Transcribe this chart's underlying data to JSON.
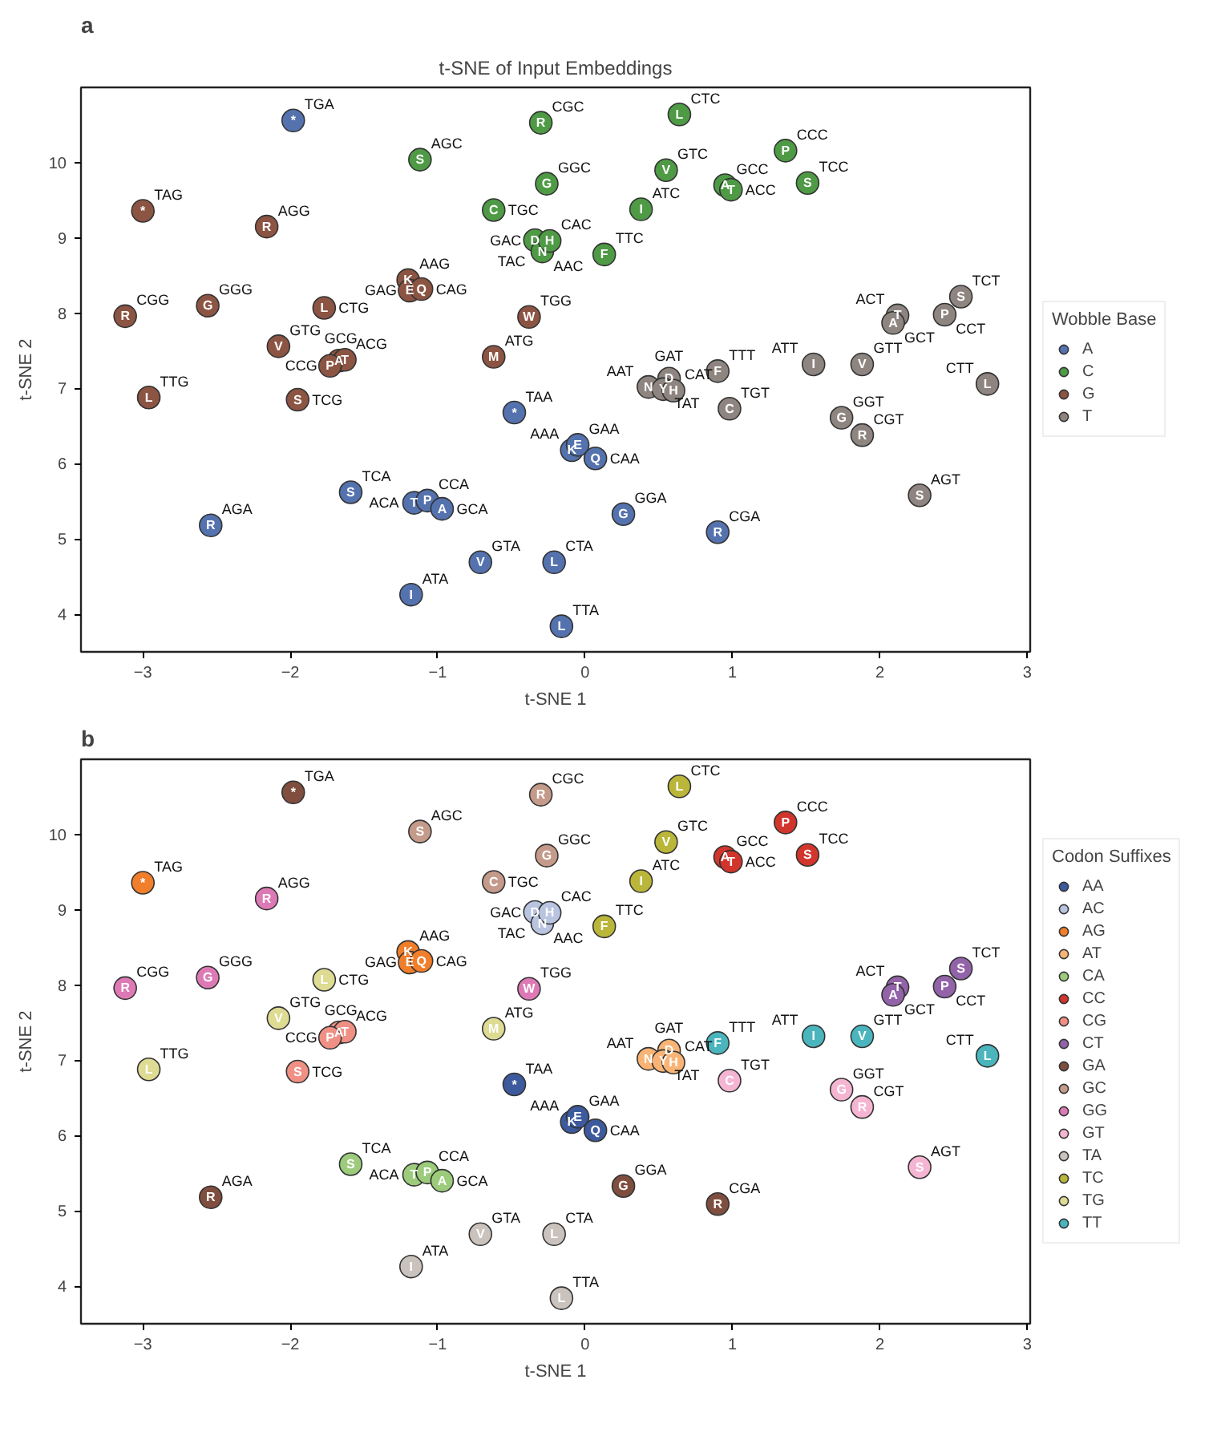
{
  "chart_data": [
    {
      "type": "scatter",
      "title": "t-SNE of Input Embeddings",
      "xlabel": "t-SNE 1",
      "ylabel": "t-SNE 2",
      "legend_title": "Wobble Base",
      "legend": "right",
      "marker": "circle",
      "grid": false,
      "xlim": [
        -3.42,
        3.02
      ],
      "ylim": [
        3.5,
        11.0
      ],
      "xticks": [
        -3,
        -2,
        -1,
        0,
        1,
        2,
        3
      ],
      "yticks": [
        4,
        5,
        6,
        7,
        8,
        9,
        10
      ],
      "series": [
        {
          "name": "A",
          "color": "#5472ae",
          "x": [
            -1.98,
            -0.48,
            -0.09,
            -0.05,
            0.07,
            -1.59,
            -1.16,
            -1.07,
            -0.97,
            0.26,
            -2.54,
            0.9,
            -0.71,
            -0.21,
            -1.18,
            -0.16
          ],
          "values": [
            10.56,
            6.68,
            6.18,
            6.25,
            6.07,
            5.62,
            5.48,
            5.51,
            5.4,
            5.33,
            5.18,
            5.09,
            4.69,
            4.69,
            4.26,
            3.84
          ],
          "value_labels": [
            "*",
            "*",
            "K",
            "E",
            "Q",
            "S",
            "T",
            "P",
            "A",
            "G",
            "R",
            "R",
            "V",
            "L",
            "I",
            "L"
          ]
        },
        {
          "name": "C",
          "color": "#4e9a45",
          "x": [
            -0.3,
            0.64,
            -1.12,
            1.36,
            0.55,
            -0.26,
            0.95,
            0.99,
            1.51,
            -0.62,
            0.38,
            null,
            -0.34,
            -0.29,
            -0.24,
            0.13
          ],
          "values": [
            10.53,
            10.64,
            10.04,
            10.16,
            9.9,
            9.72,
            9.7,
            9.64,
            9.73,
            9.37,
            9.38,
            null,
            8.97,
            8.82,
            8.96,
            8.78
          ],
          "value_labels": [
            "R",
            "L",
            "S",
            "P",
            "V",
            "G",
            "A",
            "T",
            "S",
            "C",
            "I",
            null,
            "D",
            "N",
            "H",
            "F"
          ]
        },
        {
          "name": "G",
          "color": "#8c5443",
          "x": [
            -3.0,
            -2.16,
            -1.2,
            -1.19,
            -1.11,
            -2.56,
            -3.12,
            -1.77,
            -0.38,
            -2.08,
            -1.67,
            -1.63,
            -1.73,
            -0.62,
            -2.96,
            -1.95
          ],
          "values": [
            9.36,
            9.15,
            8.44,
            8.3,
            8.32,
            8.1,
            7.96,
            8.07,
            7.95,
            7.56,
            7.37,
            7.38,
            7.3,
            7.42,
            6.88,
            6.85
          ],
          "value_labels": [
            "*",
            "R",
            "K",
            "E",
            "Q",
            "G",
            "R",
            "L",
            "W",
            "V",
            "A",
            "T",
            "P",
            "M",
            "L",
            "S"
          ]
        },
        {
          "name": "T",
          "color": "#8e8580",
          "x": [
            2.55,
            2.44,
            2.12,
            2.09,
            1.55,
            1.88,
            0.9,
            2.73,
            0.43,
            0.57,
            0.53,
            0.6,
            0.98,
            1.74,
            1.88,
            2.27
          ],
          "values": [
            8.22,
            7.98,
            7.97,
            7.87,
            7.32,
            7.32,
            7.23,
            7.06,
            7.02,
            7.13,
            6.99,
            6.97,
            6.73,
            6.61,
            6.38,
            5.58
          ],
          "value_labels": [
            "S",
            "P",
            "T",
            "A",
            "I",
            "V",
            "F",
            "L",
            "N",
            "D",
            "Y",
            "H",
            "C",
            "G",
            "R",
            "S"
          ]
        }
      ],
      "annotations": [
        "a",
        {
          "text": "TGA",
          "x": -1.98,
          "y": 10.56
        },
        {
          "text": "TAA",
          "x": -0.48,
          "y": 6.68
        },
        {
          "text": "AAA",
          "x": -0.09,
          "y": 6.18
        },
        {
          "text": "GAA",
          "x": -0.05,
          "y": 6.25
        },
        {
          "text": "CAA",
          "x": 0.07,
          "y": 6.07
        },
        {
          "text": "TCA",
          "x": -1.59,
          "y": 5.62
        },
        {
          "text": "ACA",
          "x": -1.16,
          "y": 5.48
        },
        {
          "text": "CCA",
          "x": -1.07,
          "y": 5.51
        },
        {
          "text": "GCA",
          "x": -0.97,
          "y": 5.4
        },
        {
          "text": "GGA",
          "x": 0.26,
          "y": 5.33
        },
        {
          "text": "AGA",
          "x": -2.54,
          "y": 5.18
        },
        {
          "text": "CGA",
          "x": 0.9,
          "y": 5.09
        },
        {
          "text": "GTA",
          "x": -0.71,
          "y": 4.69
        },
        {
          "text": "CTA",
          "x": -0.21,
          "y": 4.69
        },
        {
          "text": "ATA",
          "x": -1.18,
          "y": 4.26
        },
        {
          "text": "TTA",
          "x": -0.16,
          "y": 3.84
        },
        {
          "text": "CGC",
          "x": -0.3,
          "y": 10.53
        },
        {
          "text": "CTC",
          "x": 0.64,
          "y": 10.64
        },
        {
          "text": "AGC",
          "x": -1.12,
          "y": 10.04
        },
        {
          "text": "CCC",
          "x": 1.36,
          "y": 10.16
        },
        {
          "text": "GTC",
          "x": 0.55,
          "y": 9.9
        },
        {
          "text": "GGC",
          "x": -0.26,
          "y": 9.72
        },
        {
          "text": "GCC",
          "x": 0.95,
          "y": 9.7
        },
        {
          "text": "ACC",
          "x": 0.99,
          "y": 9.64
        },
        {
          "text": "TCC",
          "x": 1.51,
          "y": 9.73
        },
        {
          "text": "TGC",
          "x": -0.62,
          "y": 9.37
        },
        {
          "text": "ATC",
          "x": 0.38,
          "y": 9.38
        },
        {
          "text": "TAC",
          "x": -0.31,
          "y": 8.88
        },
        {
          "text": "GAC",
          "x": -0.34,
          "y": 8.97
        },
        {
          "text": "AAC",
          "x": -0.29,
          "y": 8.82
        },
        {
          "text": "CAC",
          "x": -0.24,
          "y": 8.96
        },
        {
          "text": "TTC",
          "x": 0.13,
          "y": 8.78
        },
        {
          "text": "TAG",
          "x": -3.0,
          "y": 9.36
        },
        {
          "text": "AGG",
          "x": -2.16,
          "y": 9.15
        },
        {
          "text": "AAG",
          "x": -1.2,
          "y": 8.44
        },
        {
          "text": "GAG",
          "x": -1.19,
          "y": 8.3
        },
        {
          "text": "CAG",
          "x": -1.11,
          "y": 8.32
        },
        {
          "text": "GGG",
          "x": -2.56,
          "y": 8.1
        },
        {
          "text": "CGG",
          "x": -3.12,
          "y": 7.96
        },
        {
          "text": "CTG",
          "x": -1.77,
          "y": 8.07
        },
        {
          "text": "TGG",
          "x": -0.38,
          "y": 7.95
        },
        {
          "text": "GTG",
          "x": -2.08,
          "y": 7.56
        },
        {
          "text": "GCG",
          "x": -1.67,
          "y": 7.37
        },
        {
          "text": "ACG",
          "x": -1.63,
          "y": 7.38
        },
        {
          "text": "CCG",
          "x": -1.73,
          "y": 7.3
        },
        {
          "text": "ATG",
          "x": -0.62,
          "y": 7.42
        },
        {
          "text": "TTG",
          "x": -2.96,
          "y": 6.88
        },
        {
          "text": "TCG",
          "x": -1.95,
          "y": 6.85
        },
        {
          "text": "TCT",
          "x": 2.55,
          "y": 8.22
        },
        {
          "text": "CCT",
          "x": 2.44,
          "y": 7.98
        },
        {
          "text": "ACT",
          "x": 2.12,
          "y": 7.97
        },
        {
          "text": "GCT",
          "x": 2.09,
          "y": 7.87
        },
        {
          "text": "ATT",
          "x": 1.55,
          "y": 7.32
        },
        {
          "text": "GTT",
          "x": 1.88,
          "y": 7.32
        },
        {
          "text": "TTT",
          "x": 0.9,
          "y": 7.23
        },
        {
          "text": "CTT",
          "x": 2.73,
          "y": 7.06
        },
        {
          "text": "AAT",
          "x": 0.43,
          "y": 7.02
        },
        {
          "text": "GAT",
          "x": 0.57,
          "y": 7.13
        },
        {
          "text": "TAT",
          "x": 0.53,
          "y": 6.99
        },
        {
          "text": "CAT",
          "x": 0.6,
          "y": 6.97
        },
        {
          "text": "TGT",
          "x": 0.98,
          "y": 6.73
        },
        {
          "text": "GGT",
          "x": 1.74,
          "y": 6.61
        },
        {
          "text": "CGT",
          "x": 1.88,
          "y": 6.38
        },
        {
          "text": "AGT",
          "x": 2.27,
          "y": 5.58
        }
      ]
    },
    {
      "type": "scatter",
      "xlabel": "t-SNE 1",
      "ylabel": "t-SNE 2",
      "legend_title": "Codon Suffixes",
      "legend": "right",
      "marker": "circle",
      "grid": false,
      "xlim": [
        -3.42,
        3.02
      ],
      "ylim": [
        3.5,
        11.0
      ],
      "xticks": [
        -3,
        -2,
        -1,
        0,
        1,
        2,
        3
      ],
      "yticks": [
        4,
        5,
        6,
        7,
        8,
        9,
        10
      ],
      "series": [
        {
          "name": "AA",
          "color": "#3d5a9c",
          "x": [
            -0.48,
            -0.09,
            -0.05,
            0.07
          ],
          "values": [
            6.68,
            6.18,
            6.25,
            6.07
          ],
          "value_labels": [
            "*",
            "K",
            "E",
            "Q"
          ]
        },
        {
          "name": "AC",
          "color": "#b8c4e0",
          "x": [
            null,
            -0.34,
            -0.29,
            -0.24
          ],
          "values": [
            null,
            8.97,
            8.82,
            8.96
          ],
          "value_labels": [
            null,
            "D",
            "N",
            "H"
          ]
        },
        {
          "name": "AG",
          "color": "#f07e2a",
          "x": [
            -3.0,
            -1.2,
            -1.19,
            -1.11
          ],
          "values": [
            9.36,
            8.44,
            8.3,
            8.32
          ],
          "value_labels": [
            "*",
            "K",
            "E",
            "Q"
          ]
        },
        {
          "name": "AT",
          "color": "#f9b475",
          "x": [
            0.43,
            0.57,
            0.53,
            0.6
          ],
          "values": [
            7.02,
            7.13,
            6.99,
            6.97
          ],
          "value_labels": [
            "N",
            "D",
            "Y",
            "H"
          ]
        },
        {
          "name": "CA",
          "color": "#9bcb7b",
          "x": [
            -1.59,
            -1.16,
            -1.07,
            -0.97
          ],
          "values": [
            5.62,
            5.48,
            5.51,
            5.4
          ],
          "value_labels": [
            "S",
            "T",
            "P",
            "A"
          ]
        },
        {
          "name": "CC",
          "color": "#d1352b",
          "x": [
            1.36,
            0.95,
            0.99,
            1.51
          ],
          "values": [
            10.16,
            9.7,
            9.64,
            9.73
          ],
          "value_labels": [
            "P",
            "A",
            "T",
            "S"
          ]
        },
        {
          "name": "CG",
          "color": "#f08f84",
          "x": [
            -1.67,
            -1.63,
            -1.73,
            -1.95
          ],
          "values": [
            7.37,
            7.38,
            7.3,
            6.85
          ],
          "value_labels": [
            "A",
            "T",
            "P",
            "S"
          ]
        },
        {
          "name": "CT",
          "color": "#9263a8",
          "x": [
            2.55,
            2.44,
            2.12,
            2.09
          ],
          "values": [
            8.22,
            7.98,
            7.97,
            7.87
          ],
          "value_labels": [
            "S",
            "P",
            "T",
            "A"
          ]
        },
        {
          "name": "GA",
          "color": "#7f4e3e",
          "x": [
            -1.98,
            0.26,
            -2.54,
            0.9
          ],
          "values": [
            10.56,
            5.33,
            5.18,
            5.09
          ],
          "value_labels": [
            "*",
            "G",
            "R",
            "R"
          ]
        },
        {
          "name": "GC",
          "color": "#c49a8a",
          "x": [
            -0.3,
            -1.12,
            -0.26,
            -0.62
          ],
          "values": [
            10.53,
            10.04,
            9.72,
            9.37
          ],
          "value_labels": [
            "R",
            "S",
            "G",
            "C"
          ]
        },
        {
          "name": "GG",
          "color": "#dd7ab6",
          "x": [
            -2.16,
            -2.56,
            -3.12,
            -0.38
          ],
          "values": [
            9.15,
            8.1,
            7.96,
            7.95
          ],
          "value_labels": [
            "R",
            "G",
            "R",
            "W"
          ]
        },
        {
          "name": "GT",
          "color": "#f5b5d2",
          "x": [
            0.98,
            1.74,
            1.88,
            2.27
          ],
          "values": [
            6.73,
            6.61,
            6.38,
            5.58
          ],
          "value_labels": [
            "C",
            "G",
            "R",
            "S"
          ]
        },
        {
          "name": "TA",
          "color": "#cac2bc",
          "x": [
            -0.71,
            -0.21,
            -1.18,
            -0.16
          ],
          "values": [
            4.69,
            4.69,
            4.26,
            3.84
          ],
          "value_labels": [
            "V",
            "L",
            "I",
            "L"
          ]
        },
        {
          "name": "TC",
          "color": "#b9b63a",
          "x": [
            0.64,
            0.55,
            0.38,
            0.13
          ],
          "values": [
            10.64,
            9.9,
            9.38,
            8.78
          ],
          "value_labels": [
            "L",
            "V",
            "I",
            "F"
          ]
        },
        {
          "name": "TG",
          "color": "#dedb93",
          "x": [
            -1.77,
            -2.08,
            -0.62,
            -2.96
          ],
          "values": [
            8.07,
            7.56,
            7.42,
            6.88
          ],
          "value_labels": [
            "L",
            "V",
            "M",
            "L"
          ]
        },
        {
          "name": "TT",
          "color": "#4ab5bd",
          "x": [
            1.55,
            1.88,
            0.9,
            2.73
          ],
          "values": [
            7.32,
            7.32,
            7.23,
            7.06
          ],
          "value_labels": [
            "I",
            "V",
            "F",
            "L"
          ]
        }
      ],
      "annotations": [
        "b",
        {
          "text": "TGA",
          "x": -1.98,
          "y": 10.56
        },
        {
          "text": "TAA",
          "x": -0.48,
          "y": 6.68
        },
        {
          "text": "AAA",
          "x": -0.09,
          "y": 6.18
        },
        {
          "text": "GAA",
          "x": -0.05,
          "y": 6.25
        },
        {
          "text": "CAA",
          "x": 0.07,
          "y": 6.07
        },
        {
          "text": "TCA",
          "x": -1.59,
          "y": 5.62
        },
        {
          "text": "ACA",
          "x": -1.16,
          "y": 5.48
        },
        {
          "text": "CCA",
          "x": -1.07,
          "y": 5.51
        },
        {
          "text": "GCA",
          "x": -0.97,
          "y": 5.4
        },
        {
          "text": "GGA",
          "x": 0.26,
          "y": 5.33
        },
        {
          "text": "AGA",
          "x": -2.54,
          "y": 5.18
        },
        {
          "text": "CGA",
          "x": 0.9,
          "y": 5.09
        },
        {
          "text": "GTA",
          "x": -0.71,
          "y": 4.69
        },
        {
          "text": "CTA",
          "x": -0.21,
          "y": 4.69
        },
        {
          "text": "ATA",
          "x": -1.18,
          "y": 4.26
        },
        {
          "text": "TTA",
          "x": -0.16,
          "y": 3.84
        },
        {
          "text": "CGC",
          "x": -0.3,
          "y": 10.53
        },
        {
          "text": "CTC",
          "x": 0.64,
          "y": 10.64
        },
        {
          "text": "AGC",
          "x": -1.12,
          "y": 10.04
        },
        {
          "text": "CCC",
          "x": 1.36,
          "y": 10.16
        },
        {
          "text": "GTC",
          "x": 0.55,
          "y": 9.9
        },
        {
          "text": "GGC",
          "x": -0.26,
          "y": 9.72
        },
        {
          "text": "GCC",
          "x": 0.95,
          "y": 9.7
        },
        {
          "text": "ACC",
          "x": 0.99,
          "y": 9.64
        },
        {
          "text": "TCC",
          "x": 1.51,
          "y": 9.73
        },
        {
          "text": "TGC",
          "x": -0.62,
          "y": 9.37
        },
        {
          "text": "ATC",
          "x": 0.38,
          "y": 9.38
        },
        {
          "text": "TAC",
          "x": -0.31,
          "y": 8.88
        },
        {
          "text": "GAC",
          "x": -0.34,
          "y": 8.97
        },
        {
          "text": "AAC",
          "x": -0.29,
          "y": 8.82
        },
        {
          "text": "CAC",
          "x": -0.24,
          "y": 8.96
        },
        {
          "text": "TTC",
          "x": 0.13,
          "y": 8.78
        },
        {
          "text": "TAG",
          "x": -3.0,
          "y": 9.36
        },
        {
          "text": "AGG",
          "x": -2.16,
          "y": 9.15
        },
        {
          "text": "AAG",
          "x": -1.2,
          "y": 8.44
        },
        {
          "text": "GAG",
          "x": -1.19,
          "y": 8.3
        },
        {
          "text": "CAG",
          "x": -1.11,
          "y": 8.32
        },
        {
          "text": "GGG",
          "x": -2.56,
          "y": 8.1
        },
        {
          "text": "CGG",
          "x": -3.12,
          "y": 7.96
        },
        {
          "text": "CTG",
          "x": -1.77,
          "y": 8.07
        },
        {
          "text": "TGG",
          "x": -0.38,
          "y": 7.95
        },
        {
          "text": "GTG",
          "x": -2.08,
          "y": 7.56
        },
        {
          "text": "GCG",
          "x": -1.67,
          "y": 7.37
        },
        {
          "text": "ACG",
          "x": -1.63,
          "y": 7.38
        },
        {
          "text": "CCG",
          "x": -1.73,
          "y": 7.3
        },
        {
          "text": "ATG",
          "x": -0.62,
          "y": 7.42
        },
        {
          "text": "TTG",
          "x": -2.96,
          "y": 6.88
        },
        {
          "text": "TCG",
          "x": -1.95,
          "y": 6.85
        },
        {
          "text": "TCT",
          "x": 2.55,
          "y": 8.22
        },
        {
          "text": "CCT",
          "x": 2.44,
          "y": 7.98
        },
        {
          "text": "ACT",
          "x": 2.12,
          "y": 7.97
        },
        {
          "text": "GCT",
          "x": 2.09,
          "y": 7.87
        },
        {
          "text": "ATT",
          "x": 1.55,
          "y": 7.32
        },
        {
          "text": "GTT",
          "x": 1.88,
          "y": 7.32
        },
        {
          "text": "TTT",
          "x": 0.9,
          "y": 7.23
        },
        {
          "text": "CTT",
          "x": 2.73,
          "y": 7.06
        },
        {
          "text": "AAT",
          "x": 0.43,
          "y": 7.02
        },
        {
          "text": "GAT",
          "x": 0.57,
          "y": 7.13
        },
        {
          "text": "TAT",
          "x": 0.53,
          "y": 6.99
        },
        {
          "text": "CAT",
          "x": 0.6,
          "y": 6.97
        },
        {
          "text": "TGT",
          "x": 0.98,
          "y": 6.73
        },
        {
          "text": "GGT",
          "x": 1.74,
          "y": 6.61
        },
        {
          "text": "CGT",
          "x": 1.88,
          "y": 6.38
        },
        {
          "text": "AGT",
          "x": 2.27,
          "y": 5.58
        }
      ]
    }
  ]
}
